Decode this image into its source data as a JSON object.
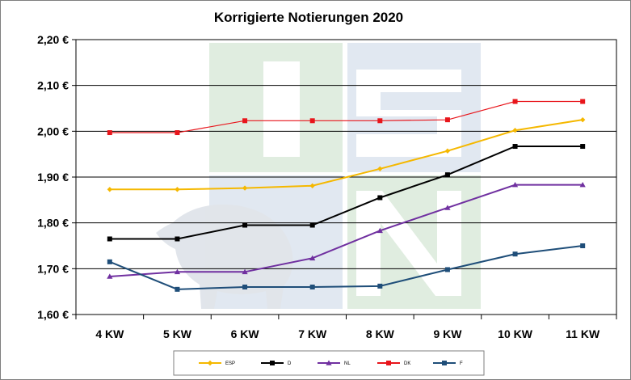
{
  "chart_data": {
    "type": "line",
    "title": "Korrigierte Notierungen 2020",
    "xlabel": "",
    "ylabel": "",
    "categories": [
      "4 KW",
      "5 KW",
      "6 KW",
      "7 KW",
      "8 KW",
      "9 KW",
      "10 KW",
      "11 KW"
    ],
    "y_ticks": [
      "1,60 €",
      "1,70 €",
      "1,80 €",
      "1,90 €",
      "2,00 €",
      "2,10 €",
      "2,20 €"
    ],
    "ylim": [
      1.6,
      2.2
    ],
    "grid": "horizontal",
    "legend_position": "bottom",
    "series": [
      {
        "name": "ESP",
        "color": "#f5b800",
        "marker": "diamond",
        "values": [
          1.873,
          1.873,
          1.876,
          1.881,
          1.918,
          1.957,
          2.002,
          2.025
        ]
      },
      {
        "name": "D",
        "color": "#000000",
        "marker": "square",
        "values": [
          1.765,
          1.765,
          1.795,
          1.795,
          1.855,
          1.905,
          1.967,
          1.967
        ]
      },
      {
        "name": "NL",
        "color": "#7030a0",
        "marker": "triangle",
        "values": [
          1.683,
          1.693,
          1.693,
          1.723,
          1.783,
          1.833,
          1.883,
          1.883
        ]
      },
      {
        "name": "DK",
        "color": "#e8151b",
        "marker": "square",
        "values": [
          1.997,
          1.997,
          2.023,
          2.023,
          2.023,
          2.025,
          2.065,
          2.065
        ]
      },
      {
        "name": "F",
        "color": "#1f4e79",
        "marker": "square",
        "values": [
          1.715,
          1.655,
          1.66,
          1.66,
          1.662,
          1.698,
          1.732,
          1.75
        ]
      }
    ]
  }
}
